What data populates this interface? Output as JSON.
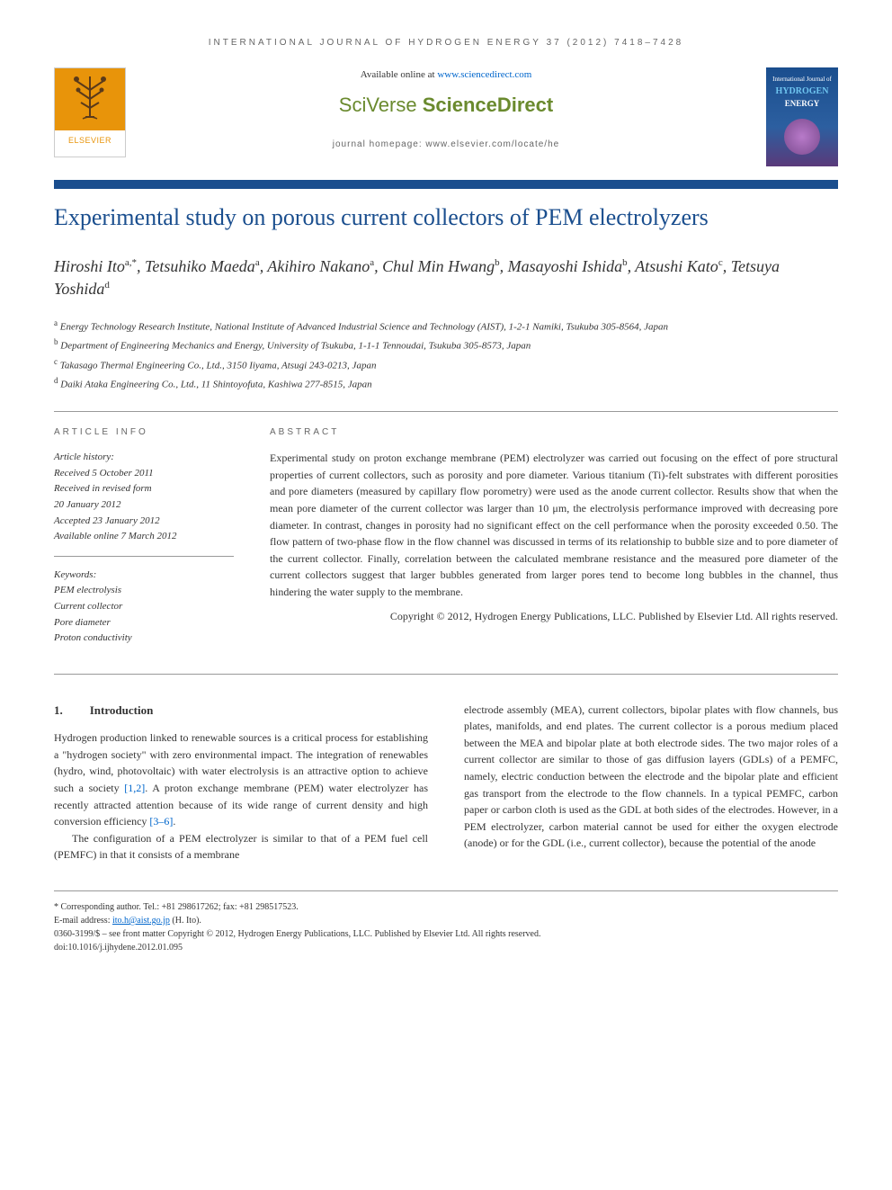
{
  "journal_header": "INTERNATIONAL JOURNAL OF HYDROGEN ENERGY 37 (2012) 7418–7428",
  "available_prefix": "Available online at ",
  "available_link": "www.sciencedirect.com",
  "sciencedirect_brand_a": "SciVerse ",
  "sciencedirect_brand_b": "ScienceDirect",
  "journal_homepage": "journal homepage: www.elsevier.com/locate/he",
  "elsevier_label": "ELSEVIER",
  "cover": {
    "top": "International Journal of",
    "main": "HYDROGEN",
    "sub": "ENERGY"
  },
  "title": "Experimental study on porous current collectors of PEM electrolyzers",
  "authors_html": "Hiroshi Ito<sup>a,*</sup>, Tetsuhiko Maeda<sup>a</sup>, Akihiro Nakano<sup>a</sup>, Chul Min Hwang<sup>b</sup>, Masayoshi Ishida<sup>b</sup>, Atsushi Kato<sup>c</sup>, Tetsuya Yoshida<sup>d</sup>",
  "affiliations": [
    {
      "sup": "a",
      "text": "Energy Technology Research Institute, National Institute of Advanced Industrial Science and Technology (AIST), 1-2-1 Namiki, Tsukuba 305-8564, Japan"
    },
    {
      "sup": "b",
      "text": "Department of Engineering Mechanics and Energy, University of Tsukuba, 1-1-1 Tennoudai, Tsukuba 305-8573, Japan"
    },
    {
      "sup": "c",
      "text": "Takasago Thermal Engineering Co., Ltd., 3150 Iiyama, Atsugi 243-0213, Japan"
    },
    {
      "sup": "d",
      "text": "Daiki Ataka Engineering Co., Ltd., 11 Shintoyofuta, Kashiwa 277-8515, Japan"
    }
  ],
  "article_info_head": "ARTICLE INFO",
  "abstract_head": "ABSTRACT",
  "history": {
    "label": "Article history:",
    "received": "Received 5 October 2011",
    "revised_a": "Received in revised form",
    "revised_b": "20 January 2012",
    "accepted": "Accepted 23 January 2012",
    "online": "Available online 7 March 2012"
  },
  "keywords_label": "Keywords:",
  "keywords": [
    "PEM electrolysis",
    "Current collector",
    "Pore diameter",
    "Proton conductivity"
  ],
  "abstract": "Experimental study on proton exchange membrane (PEM) electrolyzer was carried out focusing on the effect of pore structural properties of current collectors, such as porosity and pore diameter. Various titanium (Ti)-felt substrates with different porosities and pore diameters (measured by capillary flow porometry) were used as the anode current collector. Results show that when the mean pore diameter of the current collector was larger than 10 μm, the electrolysis performance improved with decreasing pore diameter. In contrast, changes in porosity had no significant effect on the cell performance when the porosity exceeded 0.50. The flow pattern of two-phase flow in the flow channel was discussed in terms of its relationship to bubble size and to pore diameter of the current collector. Finally, correlation between the calculated membrane resistance and the measured pore diameter of the current collectors suggest that larger bubbles generated from larger pores tend to become long bubbles in the channel, thus hindering the water supply to the membrane.",
  "copyright": "Copyright © 2012, Hydrogen Energy Publications, LLC. Published by Elsevier Ltd. All rights reserved.",
  "intro": {
    "num": "1.",
    "title": "Introduction",
    "col1_p1": "Hydrogen production linked to renewable sources is a critical process for establishing a \"hydrogen society\" with zero environmental impact. The integration of renewables (hydro, wind, photovoltaic) with water electrolysis is an attractive option to achieve such a society [1,2]. A proton exchange membrane (PEM) water electrolyzer has recently attracted attention because of its wide range of current density and high conversion efficiency [3–6].",
    "col1_p2": "The configuration of a PEM electrolyzer is similar to that of a PEM fuel cell (PEMFC) in that it consists of a membrane",
    "col2_p1": "electrode assembly (MEA), current collectors, bipolar plates with flow channels, bus plates, manifolds, and end plates. The current collector is a porous medium placed between the MEA and bipolar plate at both electrode sides. The two major roles of a current collector are similar to those of gas diffusion layers (GDLs) of a PEMFC, namely, electric conduction between the electrode and the bipolar plate and efficient gas transport from the electrode to the flow channels. In a typical PEMFC, carbon paper or carbon cloth is used as the GDL at both sides of the electrodes. However, in a PEM electrolyzer, carbon material cannot be used for either the oxygen electrode (anode) or for the GDL (i.e., current collector), because the potential of the anode"
  },
  "footer": {
    "corresponding": "* Corresponding author. Tel.: +81 298617262; fax: +81 298517523.",
    "email_label": "E-mail address: ",
    "email": "ito.h@aist.go.jp",
    "email_suffix": " (H. Ito).",
    "issn": "0360-3199/$ – see front matter Copyright © 2012, Hydrogen Energy Publications, LLC. Published by Elsevier Ltd. All rights reserved.",
    "doi": "doi:10.1016/j.ijhydene.2012.01.095"
  },
  "colors": {
    "blue": "#1a4e8e",
    "link": "#0066cc",
    "green": "#6a8a2e",
    "orange": "#e8940a"
  }
}
